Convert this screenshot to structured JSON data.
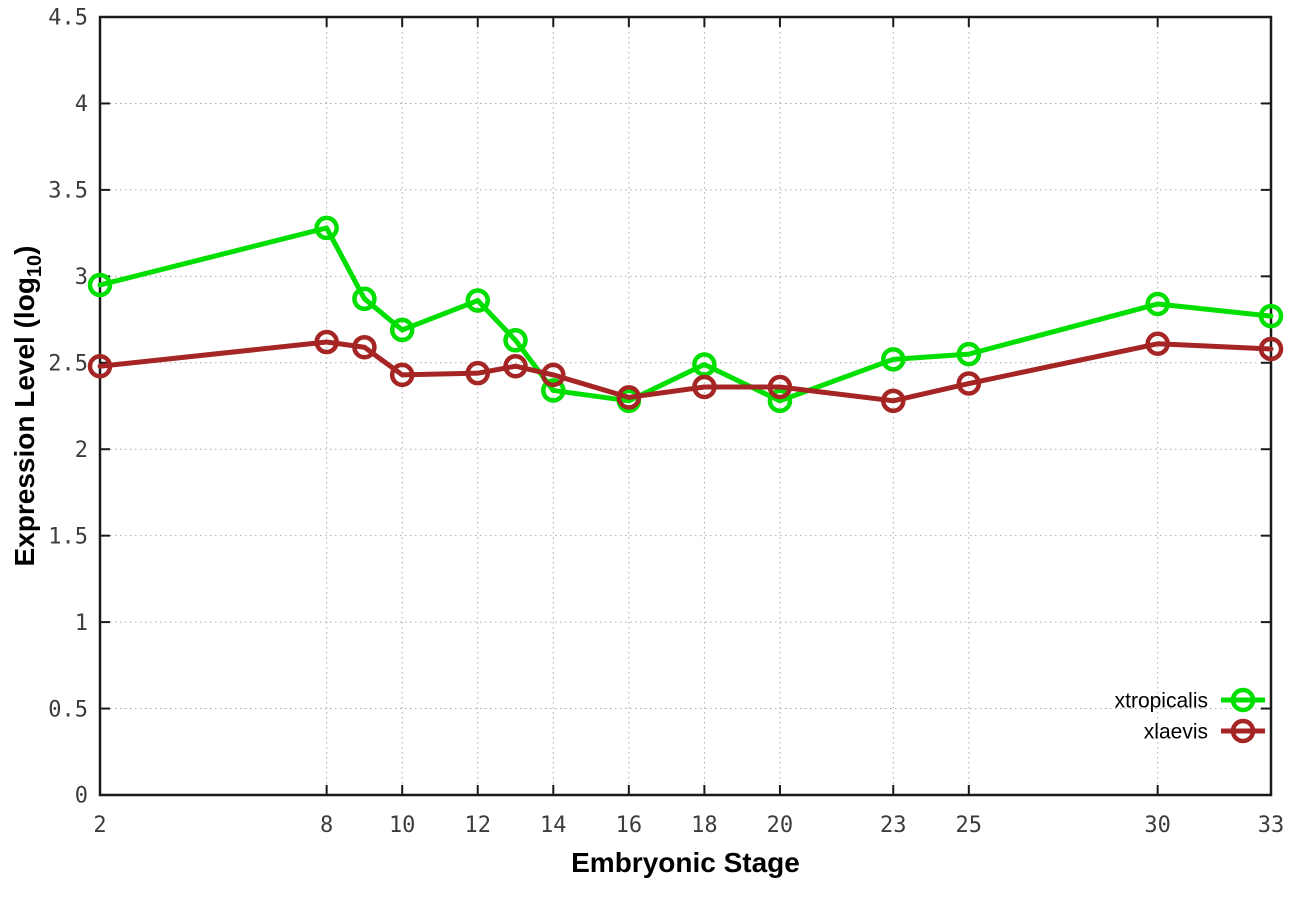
{
  "chart_data": {
    "type": "line",
    "title": "",
    "xlabel": "Embryonic Stage",
    "ylabel": {
      "text": "Expression Level (log",
      "subscript": "10",
      "suffix": ")"
    },
    "xlim": [
      2,
      33
    ],
    "ylim": [
      0,
      4.5
    ],
    "xticks": [
      2,
      8,
      10,
      12,
      14,
      16,
      18,
      20,
      23,
      25,
      30,
      33
    ],
    "yticks": [
      0,
      0.5,
      1,
      1.5,
      2,
      2.5,
      3,
      3.5,
      4,
      4.5
    ],
    "grid": true,
    "legend_position": "inside-bottom-right",
    "x": [
      2,
      8,
      9,
      10,
      12,
      13,
      14,
      16,
      18,
      20,
      23,
      25,
      30,
      33
    ],
    "series": [
      {
        "name": "xtropicalis",
        "color": "#00df00",
        "marker": "open-circle",
        "values": [
          2.95,
          3.28,
          2.87,
          2.69,
          2.86,
          2.63,
          2.34,
          2.28,
          2.49,
          2.28,
          2.52,
          2.55,
          2.84,
          2.77
        ]
      },
      {
        "name": "xlaevis",
        "color": "#a52424",
        "marker": "open-circle",
        "values": [
          2.48,
          2.62,
          2.59,
          2.43,
          2.44,
          2.48,
          2.43,
          2.3,
          2.36,
          2.36,
          2.28,
          2.38,
          2.61,
          2.58
        ]
      }
    ],
    "style": {
      "background": "#ffffff",
      "border_color": "#1a1a1a",
      "grid_color": "#aaaaaa",
      "tick_label_color": "#3c3c3c"
    }
  }
}
